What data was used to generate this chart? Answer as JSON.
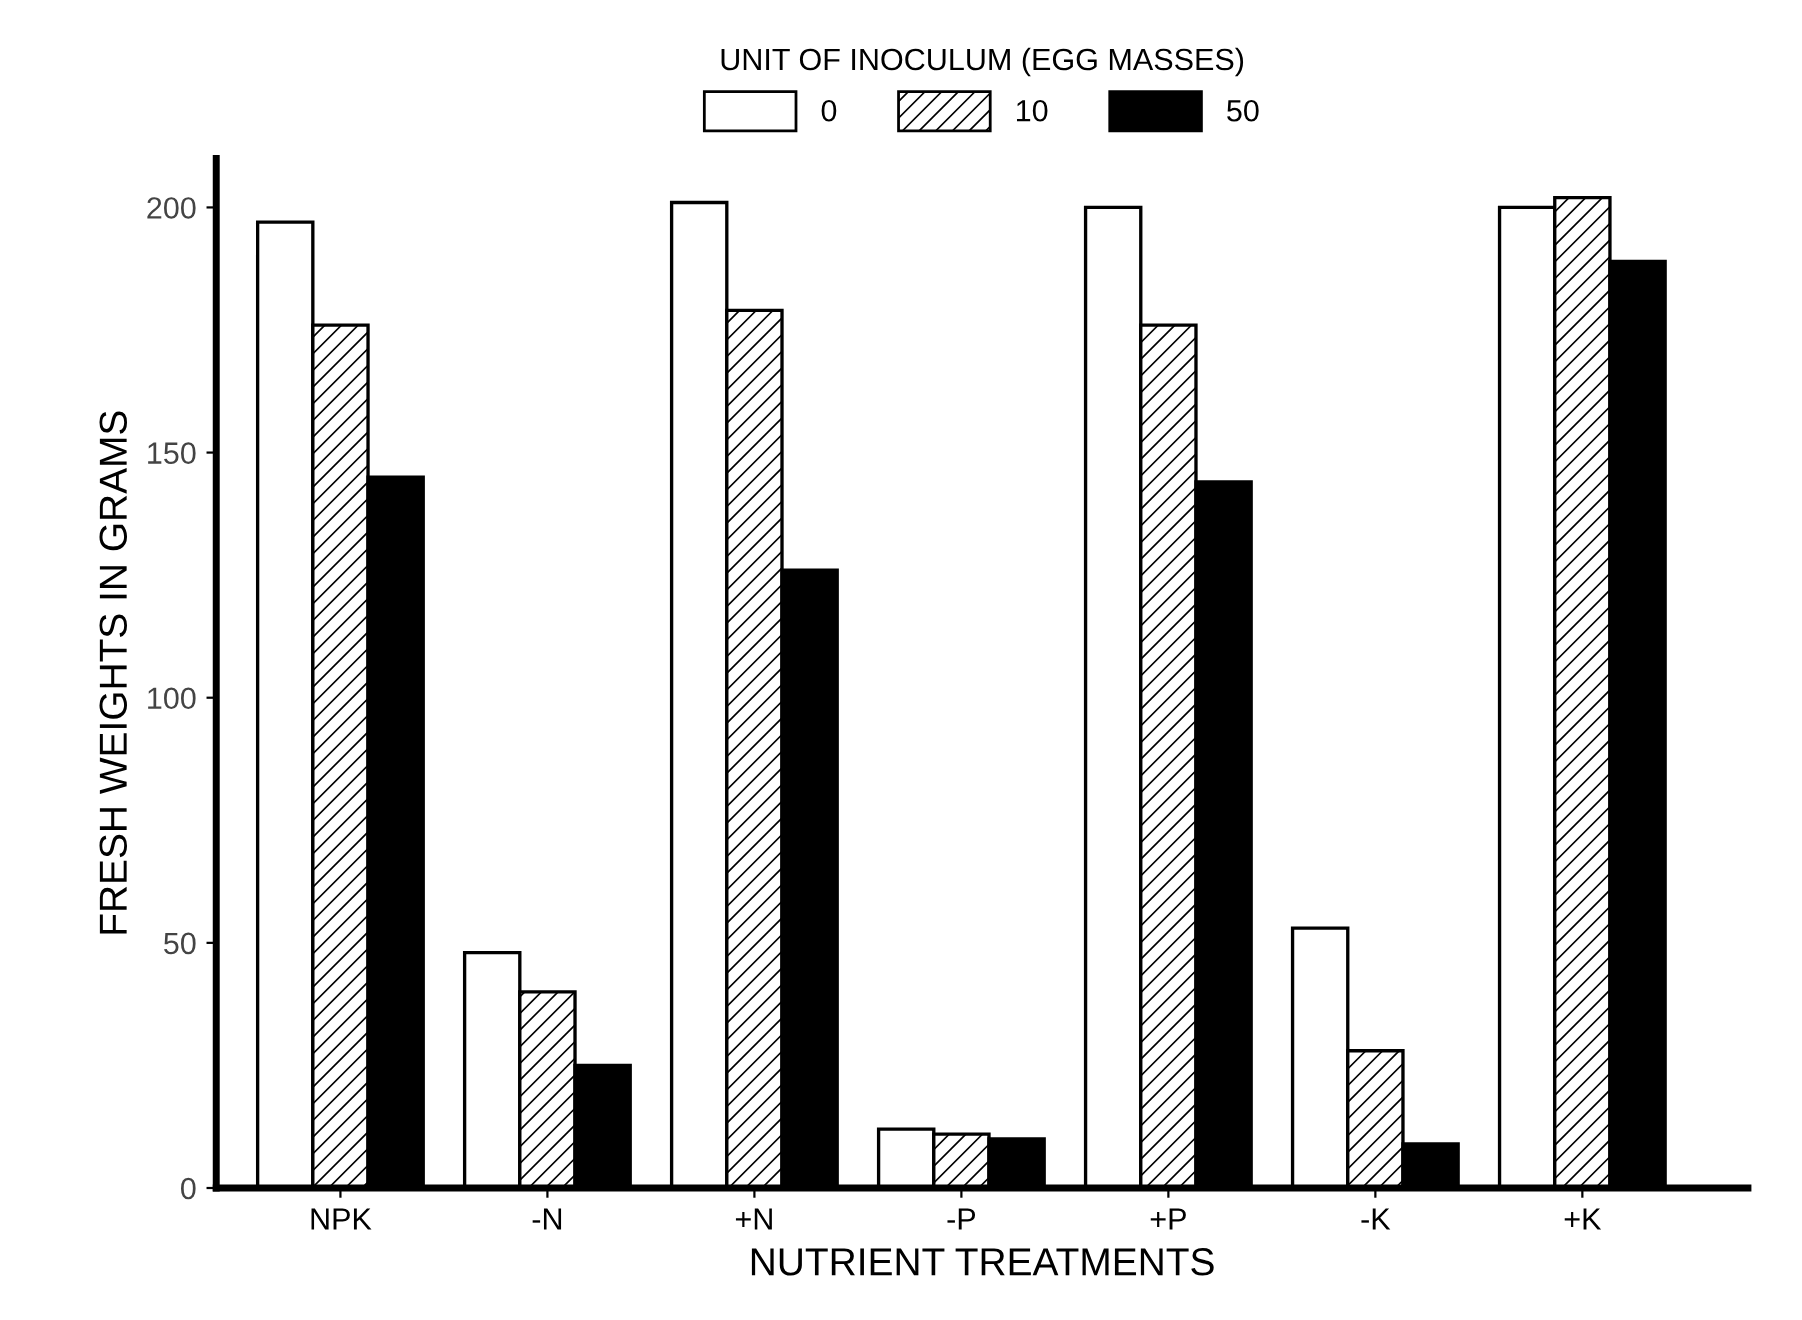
{
  "chart_data": {
    "type": "bar",
    "xlabel": "NUTRIENT TREATMENTS",
    "ylabel": "FRESH WEIGHTS IN GRAMS",
    "legend_title": "UNIT OF INOCULUM (EGG MASSES)",
    "legend": "top",
    "grid": false,
    "categories": [
      "NPK",
      "-N",
      "+N",
      "-P",
      "+P",
      "-K",
      "+K"
    ],
    "series": [
      {
        "name": "0",
        "color": "#ffffff",
        "values": [
          197,
          48,
          201,
          12,
          200,
          53,
          200
        ]
      },
      {
        "name": "10",
        "color": "#000000",
        "values": [
          176,
          40,
          179,
          11,
          176,
          28,
          202
        ]
      },
      {
        "name": "50",
        "color": "#000000",
        "values": [
          145,
          25,
          126,
          10,
          144,
          9,
          189
        ]
      }
    ],
    "ylim": [
      0,
      210
    ],
    "yticks": [
      0,
      50,
      100,
      150,
      200
    ]
  }
}
